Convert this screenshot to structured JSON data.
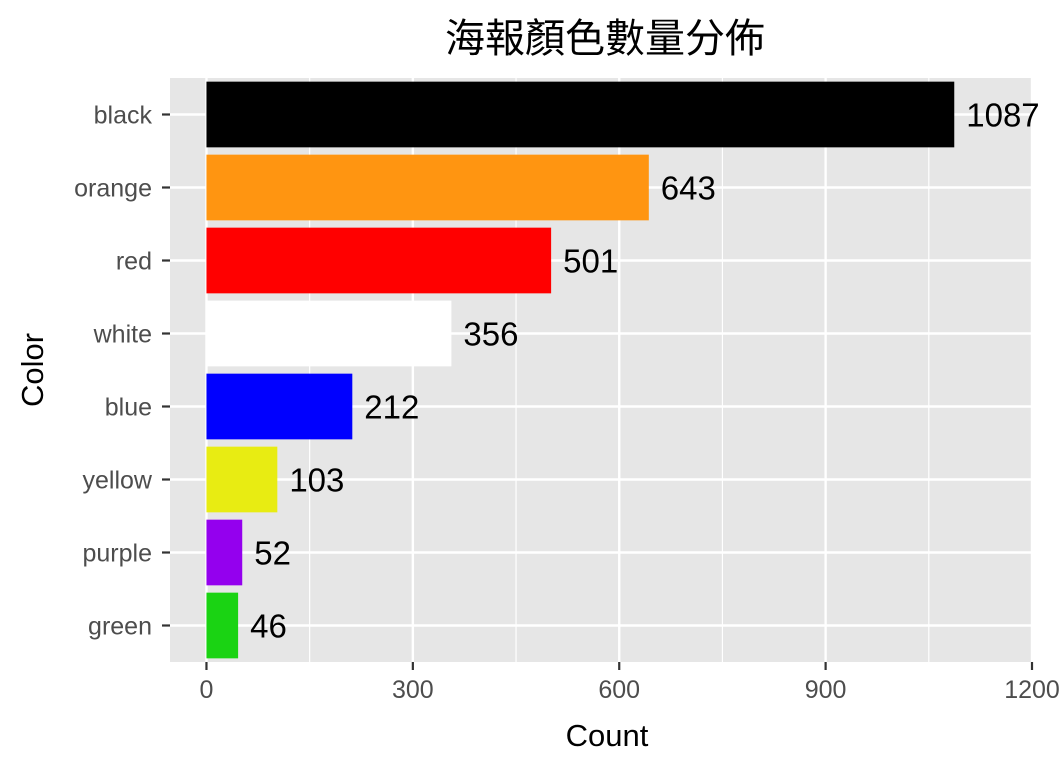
{
  "chart_data": {
    "type": "bar",
    "orientation": "horizontal",
    "title": "海報顏色數量分佈",
    "xlabel": "Count",
    "ylabel": "Color",
    "categories": [
      "black",
      "orange",
      "red",
      "white",
      "blue",
      "yellow",
      "purple",
      "green"
    ],
    "values": [
      1087,
      643,
      501,
      356,
      212,
      103,
      52,
      46
    ],
    "data_labels": [
      "1087",
      "643",
      "501",
      "356",
      "212",
      "103",
      "52",
      "46"
    ],
    "bar_colors": [
      "#000000",
      "#ff9511",
      "#ff0000",
      "#ffffff",
      "#0000ff",
      "#e8ec12",
      "#9400ee",
      "#1ad313"
    ],
    "xlim": [
      -53,
      1200
    ],
    "xticks": [
      0,
      300,
      600,
      900,
      1200
    ],
    "x_tick_labels": [
      "0",
      "300",
      "600",
      "900",
      "1200"
    ],
    "grid": true,
    "legend": "none",
    "panel_background": "#e6e6e6",
    "grid_color": "#ffffff"
  }
}
